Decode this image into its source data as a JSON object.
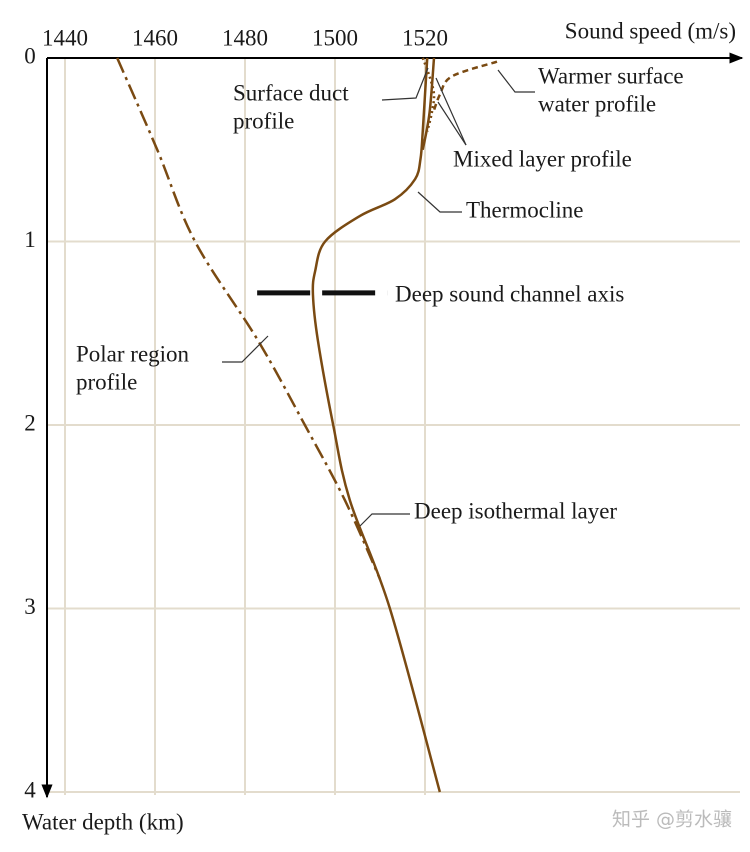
{
  "chart_data": {
    "type": "line",
    "x_label": "Sound speed (m/s)",
    "y_label": "Water depth (km)",
    "xlim": [
      1436,
      1590
    ],
    "xticks": [
      1440,
      1460,
      1480,
      1500,
      1520
    ],
    "ylim": [
      0,
      4
    ],
    "yticks": [
      0,
      1,
      2,
      3,
      4
    ],
    "grid": true,
    "grid_color": "#e3dccd",
    "series": [
      {
        "color": "#7a4a12",
        "style": "solid",
        "depth": [
          0,
          0.2,
          0.4,
          0.55,
          0.66,
          0.77,
          0.86,
          1.0,
          1.16,
          1.29,
          1.54,
          2.0,
          2.41,
          3.0,
          4.0
        ],
        "values": [
          1520.5,
          1520,
          1519.5,
          1519,
          1517.8,
          1513.3,
          1505.6,
          1497.8,
          1495.6,
          1495.1,
          1496.2,
          1499.6,
          1503.3,
          1512.2,
          1523.3
        ]
      },
      {
        "color": "#7a4a12",
        "style": "dashdot",
        "depth": [
          0,
          0.5,
          1.0,
          1.54,
          2.0,
          2.41,
          2.84
        ],
        "values": [
          1451.6,
          1460.5,
          1468.9,
          1482.9,
          1493.3,
          1502.2,
          1510
        ]
      },
      {
        "color": "#7a4a12",
        "style": "dotted",
        "depth": [
          0,
          0.1,
          0.2,
          0.3,
          0.4
        ],
        "values": [
          1519.5,
          1521,
          1522,
          1521.5,
          1520.5
        ]
      },
      {
        "color": "#7a4a12",
        "style": "solid",
        "depth": [
          0,
          0.3,
          0.5
        ],
        "values": [
          1522,
          1521,
          1519.5
        ]
      },
      {
        "color": "#7a4a12",
        "style": "dashed",
        "depth": [
          0.02,
          0.1,
          0.2,
          0.3
        ],
        "values": [
          1536,
          1526,
          1523.3,
          1521.8
        ]
      }
    ],
    "channel_axis": {
      "depth": 1.28,
      "from": 1482.7,
      "to": 1511.6
    },
    "annotations": [
      {
        "lines": [
          "Surface duct",
          "profile"
        ]
      },
      {
        "lines": [
          "Warmer surface",
          "water profile"
        ]
      },
      {
        "lines": [
          "Mixed layer profile"
        ]
      },
      {
        "lines": [
          "Thermocline"
        ]
      },
      {
        "lines": [
          "Deep sound channel axis"
        ]
      },
      {
        "lines": [
          "Polar region",
          "profile"
        ]
      },
      {
        "lines": [
          "Deep isothermal layer"
        ]
      }
    ],
    "watermark": "知乎 @剪水骧"
  }
}
